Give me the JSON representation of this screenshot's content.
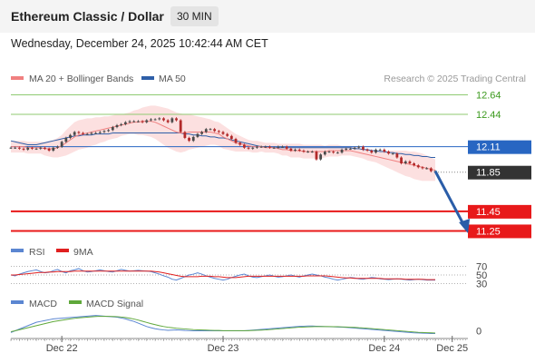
{
  "header": {
    "title": "Ethereum Classic / Dollar",
    "timeframe": "30 MIN",
    "datetime": "Wednesday, December 24, 2025 10:42:44 AM CET"
  },
  "colors": {
    "ma20": "#f08080",
    "bollinger_fill": "#fbdada",
    "ma50": "#2e5fa8",
    "green_level": "#8fca72",
    "red_level": "#e8191a",
    "blue_level": "#2866c2",
    "current_price": "#333333",
    "candle_up": "#4a4a4a",
    "candle_down": "#b22a2a",
    "rsi": "#5b86d1",
    "rsi_9ma": "#e02020",
    "macd": "#5b86d1",
    "macd_signal": "#5fa83a",
    "arrow": "#2a5da8"
  },
  "chart_data": [
    {
      "type": "candlestick",
      "legend": [
        "MA 20 + Bollinger Bands",
        "MA 50"
      ],
      "credit": "Research © 2025 Trading Central",
      "ylim": [
        11.18,
        12.7
      ],
      "levels": [
        {
          "value": 12.64,
          "label": "12.64",
          "style": "green"
        },
        {
          "value": 12.44,
          "label": "12.44",
          "style": "green"
        },
        {
          "value": 12.11,
          "label": "12.11",
          "style": "blue"
        },
        {
          "value": 11.85,
          "label": "11.85",
          "style": "current"
        },
        {
          "value": 11.45,
          "label": "11.45",
          "style": "red"
        },
        {
          "value": 11.25,
          "label": "11.25",
          "style": "red"
        }
      ],
      "forecast_arrow": {
        "from_index": 100,
        "from": 11.86,
        "to_index": 106,
        "to": 11.3
      },
      "close": [
        12.1,
        12.1,
        12.09,
        12.08,
        12.1,
        12.09,
        12.09,
        12.1,
        12.09,
        12.07,
        12.1,
        12.11,
        12.16,
        12.2,
        12.23,
        12.26,
        12.25,
        12.24,
        12.24,
        12.25,
        12.25,
        12.26,
        12.27,
        12.28,
        12.31,
        12.33,
        12.34,
        12.36,
        12.37,
        12.37,
        12.37,
        12.36,
        12.38,
        12.39,
        12.39,
        12.4,
        12.38,
        12.36,
        12.4,
        12.38,
        12.26,
        12.2,
        12.17,
        12.21,
        12.24,
        12.26,
        12.29,
        12.29,
        12.27,
        12.26,
        12.24,
        12.22,
        12.19,
        12.15,
        12.13,
        12.1,
        12.09,
        12.1,
        12.11,
        12.11,
        12.11,
        12.1,
        12.1,
        12.11,
        12.11,
        12.09,
        12.07,
        12.08,
        12.07,
        12.06,
        12.06,
        12.06,
        11.98,
        12.03,
        12.06,
        12.06,
        12.05,
        12.05,
        12.08,
        12.09,
        12.09,
        12.1,
        12.11,
        12.08,
        12.07,
        12.05,
        12.08,
        12.08,
        12.06,
        12.04,
        12.04,
        12.0,
        11.94,
        11.96,
        11.94,
        11.92,
        11.9,
        11.89,
        11.89,
        11.86,
        11.86
      ],
      "ma20": [
        12.11,
        12.11,
        12.11,
        12.11,
        12.1,
        12.1,
        12.1,
        12.1,
        12.09,
        12.09,
        12.09,
        12.1,
        12.12,
        12.15,
        12.18,
        12.21,
        12.23,
        12.24,
        12.25,
        12.26,
        12.27,
        12.28,
        12.29,
        12.3,
        12.31,
        12.32,
        12.33,
        12.34,
        12.35,
        12.36,
        12.36,
        12.37,
        12.37,
        12.37,
        12.36,
        12.34,
        12.32,
        12.3,
        12.28,
        12.26,
        12.25,
        12.25,
        12.26,
        12.26,
        12.26,
        12.26,
        12.26,
        12.26,
        12.25,
        12.24,
        12.21,
        12.19,
        12.17,
        12.15,
        12.14,
        12.13,
        12.12,
        12.11,
        12.11,
        12.11,
        12.1,
        12.1,
        12.1,
        12.09,
        12.08,
        12.08,
        12.07,
        12.07,
        12.07,
        12.06,
        12.06,
        12.06,
        12.06,
        12.06,
        12.06,
        12.07,
        12.07,
        12.07,
        12.07,
        12.07,
        12.07,
        12.06,
        12.05,
        12.04,
        12.03,
        12.02,
        12.01,
        12.0,
        11.99,
        11.98,
        11.97,
        11.96,
        11.95,
        11.94,
        11.93,
        11.92,
        11.91,
        11.9,
        11.89,
        11.88,
        11.87
      ],
      "bb_width": [
        0.06,
        0.06,
        0.06,
        0.06,
        0.06,
        0.06,
        0.06,
        0.06,
        0.07,
        0.08,
        0.09,
        0.1,
        0.11,
        0.13,
        0.14,
        0.15,
        0.15,
        0.15,
        0.15,
        0.14,
        0.14,
        0.13,
        0.13,
        0.12,
        0.12,
        0.12,
        0.11,
        0.11,
        0.11,
        0.12,
        0.13,
        0.14,
        0.15,
        0.16,
        0.17,
        0.18,
        0.19,
        0.2,
        0.2,
        0.2,
        0.2,
        0.19,
        0.18,
        0.17,
        0.16,
        0.15,
        0.14,
        0.13,
        0.12,
        0.12,
        0.12,
        0.11,
        0.1,
        0.09,
        0.08,
        0.07,
        0.06,
        0.06,
        0.06,
        0.05,
        0.05,
        0.05,
        0.05,
        0.05,
        0.06,
        0.06,
        0.07,
        0.07,
        0.07,
        0.07,
        0.07,
        0.07,
        0.07,
        0.07,
        0.06,
        0.06,
        0.06,
        0.06,
        0.05,
        0.05,
        0.05,
        0.05,
        0.05,
        0.05,
        0.06,
        0.06,
        0.06,
        0.07,
        0.08,
        0.09,
        0.1,
        0.11,
        0.12,
        0.13,
        0.13,
        0.14,
        0.14,
        0.14,
        0.13,
        0.12,
        0.11
      ],
      "ma50": [
        12.17,
        12.16,
        12.15,
        12.14,
        12.13,
        12.13,
        12.13,
        12.14,
        12.15,
        12.16,
        12.17,
        12.18,
        12.19,
        12.2,
        12.21,
        12.22,
        12.22,
        12.23,
        12.23,
        12.23,
        12.24,
        12.24,
        12.24,
        12.24,
        12.25,
        12.25,
        12.25,
        12.25,
        12.25,
        12.25,
        12.25,
        12.25,
        12.25,
        12.25,
        12.25,
        12.25,
        12.25,
        12.25,
        12.25,
        12.25,
        12.25,
        12.24,
        12.24,
        12.23,
        12.23,
        12.22,
        12.22,
        12.21,
        12.21,
        12.2,
        12.2,
        12.19,
        12.18,
        12.17,
        12.16,
        12.15,
        12.14,
        12.13,
        12.12,
        12.11,
        12.11,
        12.11,
        12.1,
        12.1,
        12.1,
        12.1,
        12.1,
        12.1,
        12.1,
        12.1,
        12.1,
        12.1,
        12.1,
        12.1,
        12.1,
        12.1,
        12.1,
        12.1,
        12.1,
        12.1,
        12.1,
        12.09,
        12.09,
        12.08,
        12.08,
        12.07,
        12.07,
        12.06,
        12.06,
        12.05,
        12.05,
        12.04,
        12.04,
        12.03,
        12.03,
        12.02,
        12.02,
        12.01,
        12.01,
        12.0,
        12.0
      ],
      "x_ticks": [
        {
          "index": 12,
          "label": "Dec 22"
        },
        {
          "index": 50,
          "label": "Dec 23"
        },
        {
          "index": 88,
          "label": "Dec 24"
        },
        {
          "index": 104,
          "label": "Dec 25"
        }
      ]
    },
    {
      "type": "line",
      "legend": [
        "RSI",
        "9MA"
      ],
      "ticks": [
        {
          "value": 70,
          "label": "70"
        },
        {
          "value": 50,
          "label": "50"
        },
        {
          "value": 30,
          "label": "30"
        }
      ],
      "ylim": [
        18,
        82
      ],
      "rsi": [
        50,
        48,
        52,
        55,
        58,
        60,
        62,
        58,
        55,
        56,
        60,
        63,
        58,
        55,
        60,
        62,
        65,
        60,
        57,
        58,
        60,
        62,
        60,
        58,
        57,
        60,
        63,
        61,
        59,
        60,
        61,
        60,
        59,
        58,
        55,
        52,
        48,
        45,
        40,
        38,
        42,
        46,
        50,
        52,
        55,
        52,
        48,
        45,
        42,
        40,
        38,
        40,
        44,
        47,
        50,
        52,
        48,
        45,
        44,
        46,
        48,
        50,
        47,
        45,
        46,
        48,
        50,
        47,
        45,
        48,
        50,
        52,
        50,
        48,
        45,
        43,
        40,
        38,
        40,
        42,
        44,
        43,
        41,
        40,
        42,
        44,
        43,
        41,
        40,
        39,
        40,
        41,
        40,
        39,
        38,
        39,
        40,
        39,
        38,
        38,
        38
      ],
      "ma9": [
        50,
        50,
        51,
        52,
        53,
        54,
        55,
        56,
        56,
        57,
        57,
        58,
        58,
        58,
        58,
        59,
        59,
        59,
        59,
        59,
        59,
        59,
        59,
        59,
        59,
        59,
        59,
        59,
        59,
        59,
        59,
        59,
        59,
        59,
        58,
        57,
        55,
        53,
        51,
        49,
        47,
        46,
        46,
        46,
        46,
        47,
        47,
        47,
        46,
        46,
        45,
        44,
        44,
        44,
        45,
        46,
        47,
        47,
        47,
        47,
        47,
        47,
        47,
        47,
        47,
        47,
        47,
        47,
        47,
        47,
        48,
        48,
        48,
        48,
        48,
        47,
        46,
        45,
        44,
        43,
        43,
        42,
        42,
        42,
        42,
        42,
        42,
        42,
        41,
        41,
        41,
        41,
        41,
        40,
        40,
        40,
        40,
        40,
        39,
        39,
        39
      ]
    },
    {
      "type": "line",
      "legend": [
        "MACD",
        "MACD Signal"
      ],
      "ticks": [
        {
          "value": 0,
          "label": "0"
        }
      ],
      "ylim": [
        -0.04,
        0.12
      ],
      "macd": [
        -0.01,
        0.0,
        0.01,
        0.02,
        0.03,
        0.04,
        0.05,
        0.055,
        0.06,
        0.065,
        0.07,
        0.072,
        0.074,
        0.076,
        0.078,
        0.08,
        0.082,
        0.084,
        0.086,
        0.088,
        0.09,
        0.088,
        0.086,
        0.084,
        0.082,
        0.08,
        0.075,
        0.07,
        0.062,
        0.055,
        0.045,
        0.035,
        0.025,
        0.018,
        0.012,
        0.008,
        0.005,
        0.003,
        0.004,
        0.005,
        0.004,
        0.002,
        0.001,
        0.0,
        0.0,
        0.0,
        0.0,
        0.0,
        0.0,
        0.0,
        0.0,
        0.0,
        0.0,
        0.0,
        0.0,
        0.0,
        0.002,
        0.004,
        0.006,
        0.008,
        0.01,
        0.012,
        0.014,
        0.016,
        0.018,
        0.02,
        0.022,
        0.024,
        0.026,
        0.027,
        0.028,
        0.028,
        0.027,
        0.026,
        0.025,
        0.024,
        0.023,
        0.022,
        0.021,
        0.02,
        0.018,
        0.016,
        0.014,
        0.012,
        0.01,
        0.008,
        0.006,
        0.004,
        0.002,
        0.0,
        -0.002,
        -0.004,
        -0.006,
        -0.008,
        -0.01,
        -0.012,
        -0.013,
        -0.014,
        -0.015,
        -0.016,
        -0.016
      ],
      "signal": [
        -0.005,
        0.0,
        0.006,
        0.012,
        0.018,
        0.024,
        0.03,
        0.036,
        0.042,
        0.048,
        0.054,
        0.058,
        0.062,
        0.066,
        0.07,
        0.073,
        0.076,
        0.078,
        0.08,
        0.082,
        0.084,
        0.085,
        0.085,
        0.085,
        0.084,
        0.083,
        0.081,
        0.078,
        0.074,
        0.069,
        0.063,
        0.056,
        0.049,
        0.042,
        0.036,
        0.03,
        0.025,
        0.021,
        0.018,
        0.015,
        0.013,
        0.011,
        0.009,
        0.007,
        0.006,
        0.005,
        0.004,
        0.003,
        0.002,
        0.002,
        0.001,
        0.001,
        0.001,
        0.001,
        0.001,
        0.001,
        0.001,
        0.002,
        0.003,
        0.004,
        0.005,
        0.007,
        0.009,
        0.011,
        0.013,
        0.015,
        0.017,
        0.019,
        0.021,
        0.022,
        0.023,
        0.024,
        0.025,
        0.025,
        0.025,
        0.025,
        0.024,
        0.024,
        0.023,
        0.022,
        0.021,
        0.02,
        0.018,
        0.017,
        0.015,
        0.013,
        0.011,
        0.009,
        0.007,
        0.005,
        0.003,
        0.001,
        -0.001,
        -0.003,
        -0.005,
        -0.007,
        -0.009,
        -0.01,
        -0.011,
        -0.012,
        -0.013
      ]
    }
  ]
}
